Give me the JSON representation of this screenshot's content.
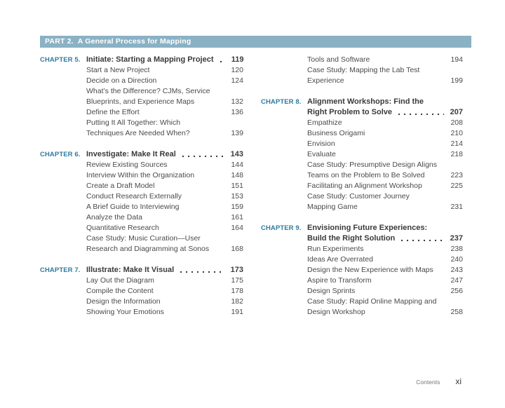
{
  "part_header": "PART 2.  A General Process for Mapping",
  "footer": {
    "section": "Contents",
    "page_number": "xi"
  },
  "colors": {
    "part_bar_bg": "#8AB1C4",
    "part_bar_text": "#FFFFFF",
    "chapter_label": "#2E7BA0",
    "chapter_title_text": "#3A3A3A",
    "body_text": "#4A4A4A"
  },
  "left_column": [
    {
      "type": "chapter",
      "label": "CHAPTER 5.",
      "title_lines": [
        "Initiate: Starting a Mapping Project"
      ],
      "page": "119",
      "items": [
        {
          "lines": [
            "Start a New Project"
          ],
          "page": "120"
        },
        {
          "lines": [
            "Decide on a Direction"
          ],
          "page": "124"
        },
        {
          "lines": [
            "What’s the Difference? CJMs, Service",
            "Blueprints, and Experience Maps"
          ],
          "page": "132"
        },
        {
          "lines": [
            "Define the Effort"
          ],
          "page": "136"
        },
        {
          "lines": [
            "Putting It All Together: Which",
            "Techniques Are Needed When?"
          ],
          "page": "139"
        }
      ]
    },
    {
      "type": "chapter",
      "label": "CHAPTER 6.",
      "title_lines": [
        "Investigate: Make It Real"
      ],
      "page": "143",
      "items": [
        {
          "lines": [
            "Review Existing Sources"
          ],
          "page": "144"
        },
        {
          "lines": [
            "Interview Within the Organization"
          ],
          "page": "148"
        },
        {
          "lines": [
            "Create a Draft Model"
          ],
          "page": "151"
        },
        {
          "lines": [
            "Conduct Research Externally"
          ],
          "page": "153"
        },
        {
          "lines": [
            "A Brief Guide to Interviewing"
          ],
          "page": "159"
        },
        {
          "lines": [
            "Analyze the Data"
          ],
          "page": "161"
        },
        {
          "lines": [
            "Quantitative Research"
          ],
          "page": "164"
        },
        {
          "lines": [
            "Case Study: Music Curation—User",
            "Research and Diagramming at Sonos"
          ],
          "page": "168"
        }
      ]
    },
    {
      "type": "chapter",
      "label": "CHAPTER 7.",
      "title_lines": [
        "Illustrate: Make It Visual"
      ],
      "page": "173",
      "items": [
        {
          "lines": [
            "Lay Out the Diagram"
          ],
          "page": "175"
        },
        {
          "lines": [
            "Compile the Content"
          ],
          "page": "178"
        },
        {
          "lines": [
            "Design the Information"
          ],
          "page": "182"
        },
        {
          "lines": [
            "Showing Your Emotions"
          ],
          "page": "191"
        }
      ]
    }
  ],
  "right_column": [
    {
      "type": "continuation",
      "items": [
        {
          "lines": [
            "Tools and Software"
          ],
          "page": "194"
        },
        {
          "lines": [
            "Case Study: Mapping the Lab Test",
            "Experience"
          ],
          "page": "199"
        }
      ]
    },
    {
      "type": "chapter",
      "label": "CHAPTER 8.",
      "title_lines": [
        "Alignment Workshops: Find the",
        "Right Problem to Solve"
      ],
      "page": "207",
      "items": [
        {
          "lines": [
            "Empathize"
          ],
          "page": "208"
        },
        {
          "lines": [
            "Business Origami"
          ],
          "page": "210"
        },
        {
          "lines": [
            "Envision"
          ],
          "page": "214"
        },
        {
          "lines": [
            "Evaluate"
          ],
          "page": "218"
        },
        {
          "lines": [
            "Case Study: Presumptive Design Aligns",
            "Teams on the Problem to Be Solved"
          ],
          "page": "223"
        },
        {
          "lines": [
            "Facilitating an Alignment Workshop"
          ],
          "page": "225"
        },
        {
          "lines": [
            "Case Study: Customer Journey",
            "Mapping Game"
          ],
          "page": "231"
        }
      ]
    },
    {
      "type": "chapter",
      "label": "CHAPTER 9.",
      "title_lines": [
        "Envisioning Future Experiences:",
        "Build the Right Solution"
      ],
      "page": "237",
      "items": [
        {
          "lines": [
            "Run Experiments"
          ],
          "page": "238"
        },
        {
          "lines": [
            "Ideas Are Overrated"
          ],
          "page": "240"
        },
        {
          "lines": [
            "Design the New Experience with Maps"
          ],
          "page": "243"
        },
        {
          "lines": [
            "Aspire to Transform"
          ],
          "page": "247"
        },
        {
          "lines": [
            "Design Sprints"
          ],
          "page": "256"
        },
        {
          "lines": [
            "Case Study: Rapid Online Mapping and",
            "Design Workshop"
          ],
          "page": "258"
        }
      ]
    }
  ]
}
